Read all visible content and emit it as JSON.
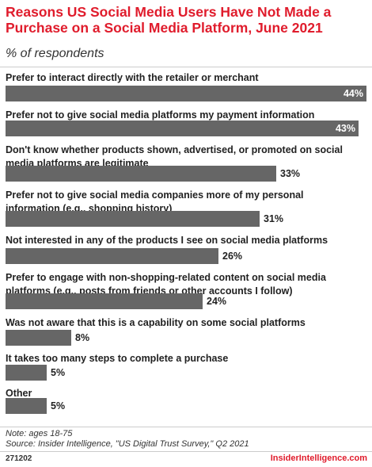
{
  "header": {
    "title": "Reasons US Social Media Users Have Not Made a Purchase on a Social Media Platform, June 2021",
    "subtitle": "% of respondents"
  },
  "chart_data": {
    "type": "bar",
    "orientation": "horizontal",
    "title": "Reasons US Social Media Users Have Not Made a Purchase on a Social Media Platform, June 2021",
    "subtitle": "% of respondents",
    "value_suffix": "%",
    "xlim": [
      0,
      44
    ],
    "categories": [
      "Prefer to interact directly with the retailer or merchant",
      "Prefer not to give social media platforms my payment information",
      "Don't know whether products shown, advertised, or promoted on social media platforms are legitimate",
      "Prefer not to give social media companies more of my personal information (e.g., shopping history)",
      "Not interested in any of the products I see on social media platforms",
      "Prefer to engage with non-shopping-related content on social media platforms (e.g., posts from friends or other accounts I follow)",
      "Was not aware that this is a capability on some social platforms",
      "It takes too many steps to complete a purchase",
      "Other"
    ],
    "values": [
      44,
      43,
      33,
      31,
      26,
      24,
      8,
      5,
      5
    ],
    "colors": {
      "bar": "#666666",
      "title": "#e01c2c"
    }
  },
  "footer": {
    "note": "Note: ages 18-75",
    "source": "Source: Insider Intelligence, \"US Digital Trust Survey,\" Q2 2021",
    "code": "271202",
    "brand": "InsiderIntelligence.com"
  }
}
